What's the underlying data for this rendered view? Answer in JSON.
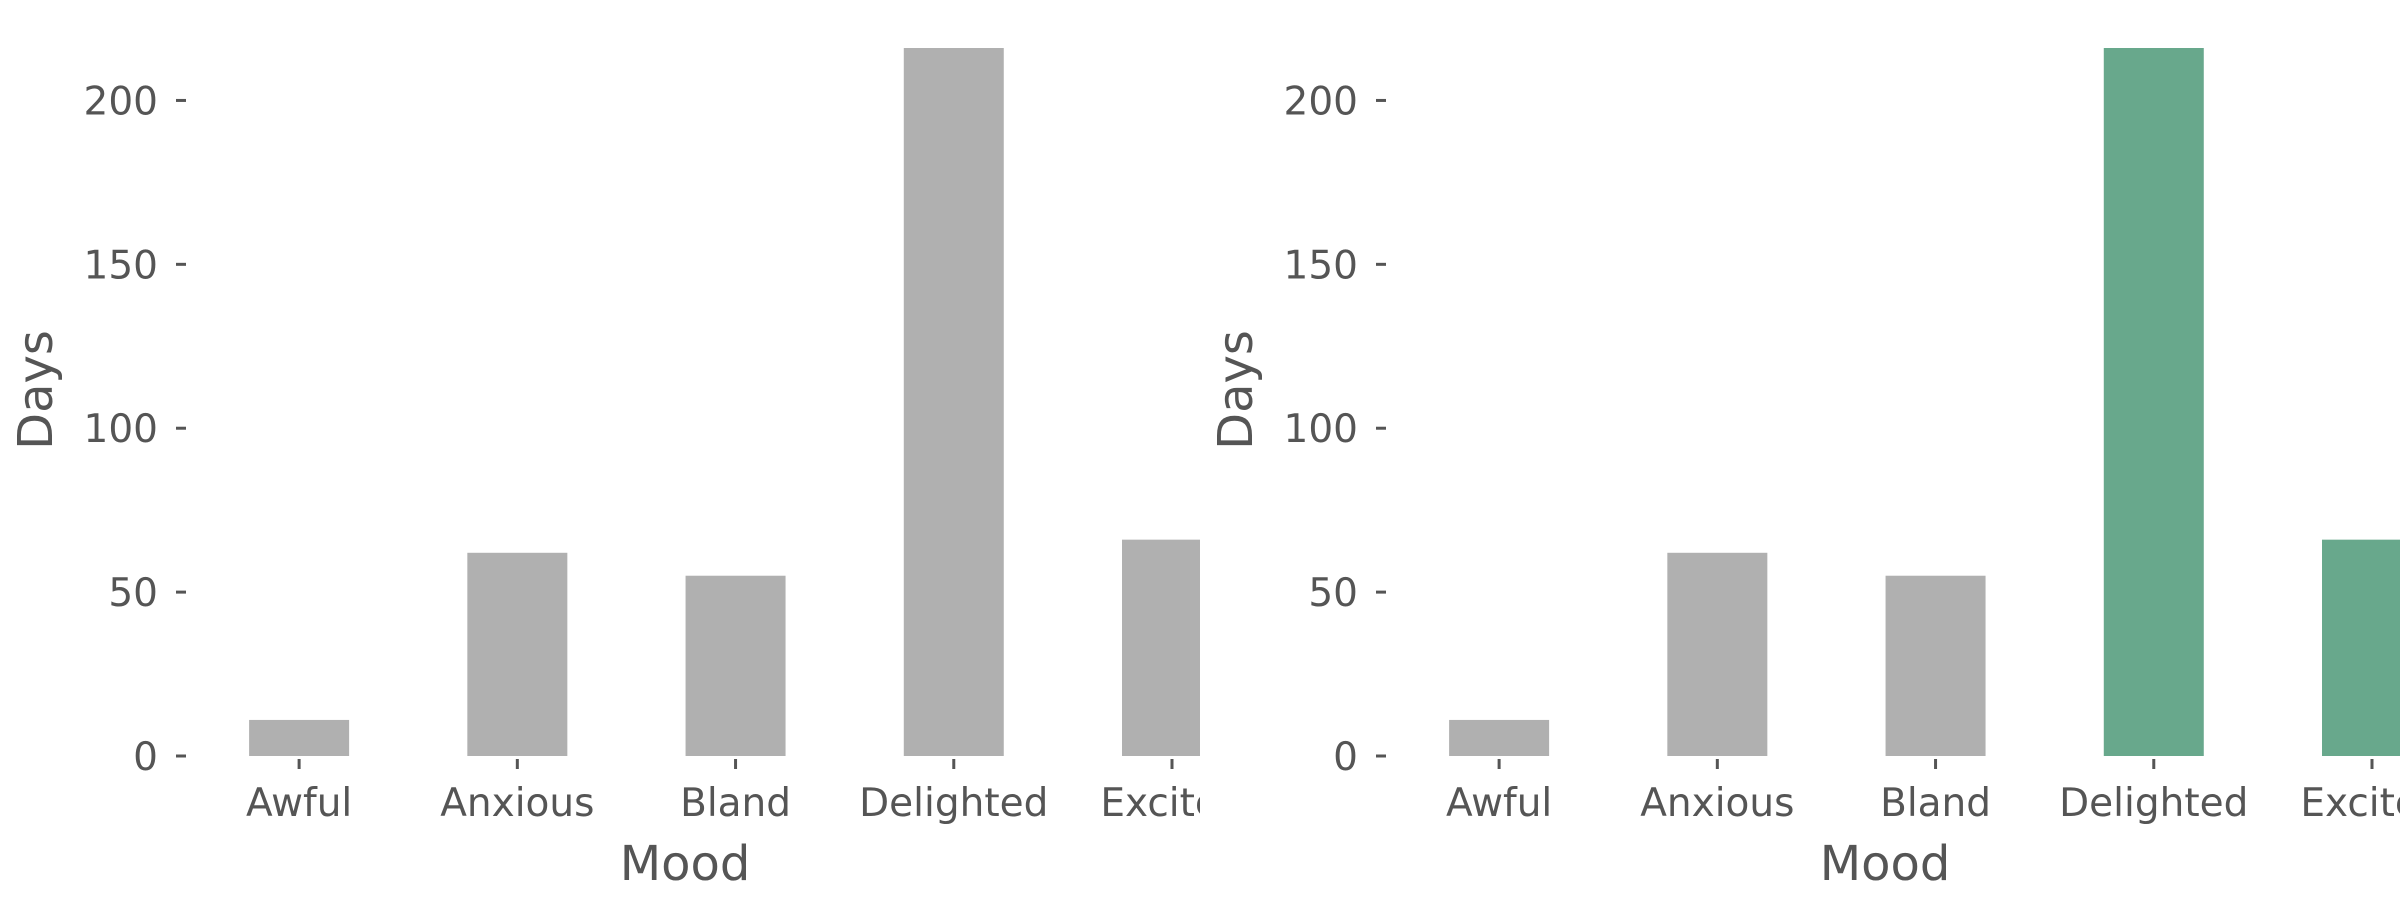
{
  "chart_data": [
    {
      "type": "bar",
      "xlabel": "Mood",
      "ylabel": "Days",
      "categories": [
        "Awful",
        "Anxious",
        "Bland",
        "Delighted",
        "Excited"
      ],
      "values": [
        11,
        62,
        55,
        216,
        66
      ],
      "ylim": [
        0,
        216
      ],
      "yticks": [
        0,
        50,
        100,
        150,
        200
      ],
      "grid": false,
      "bar_colors": [
        "#b0b0b0",
        "#b0b0b0",
        "#b0b0b0",
        "#b0b0b0",
        "#b0b0b0"
      ]
    },
    {
      "type": "bar",
      "xlabel": "Mood",
      "ylabel": "Days",
      "categories": [
        "Awful",
        "Anxious",
        "Bland",
        "Delighted",
        "Excited"
      ],
      "values": [
        11,
        62,
        55,
        216,
        66
      ],
      "ylim": [
        0,
        216
      ],
      "yticks": [
        0,
        50,
        100,
        150,
        200
      ],
      "grid": false,
      "bar_colors": [
        "#b0b0b0",
        "#b0b0b0",
        "#b0b0b0",
        "#68a88c",
        "#68a88c"
      ]
    }
  ]
}
